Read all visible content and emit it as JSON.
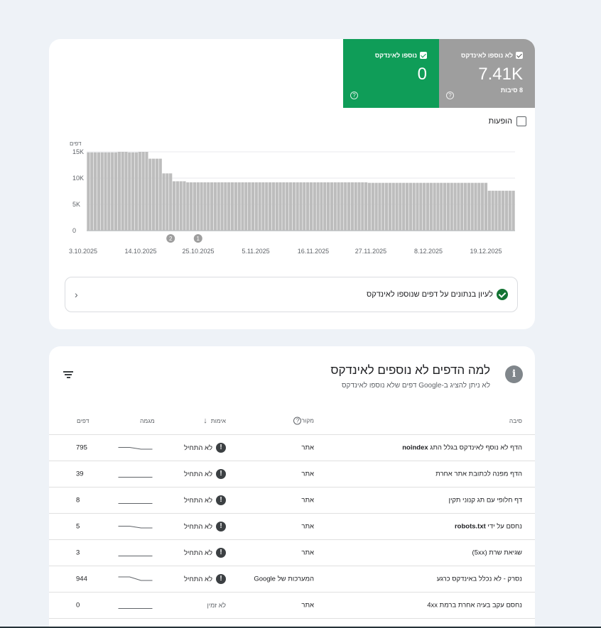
{
  "summary": {
    "not_indexed": {
      "label": "לא נוספו לאינדקס",
      "value": "7.41K",
      "sub": "8 סיבות",
      "color": "#9e9e9e"
    },
    "indexed": {
      "label": "נוספו לאינדקס",
      "value": "0",
      "color": "#0f9d58"
    },
    "help_glyph": "?"
  },
  "impressions_label": "הופעות",
  "chart_data": {
    "type": "bar",
    "ylabel": "דפים",
    "yticks": [
      "15K",
      "10K",
      "5K",
      "0"
    ],
    "ylim": [
      0,
      15000
    ],
    "xticks": [
      "3.10.2025",
      "14.10.2025",
      "25.10.2025",
      "5.11.2025",
      "16.11.2025",
      "27.11.2025",
      "8.12.2025",
      "19.12.2025"
    ],
    "values": [
      14900,
      14900,
      14900,
      14900,
      14900,
      14900,
      14900,
      14900,
      14900,
      15000,
      15000,
      15000,
      14900,
      14900,
      14900,
      15000,
      15000,
      15000,
      13700,
      13700,
      13700,
      13700,
      10900,
      10900,
      10900,
      9400,
      9400,
      9400,
      9400,
      9200,
      9200,
      9200,
      9200,
      9200,
      9200,
      9200,
      9200,
      9200,
      9200,
      9200,
      9200,
      9200,
      9200,
      9200,
      9200,
      9200,
      9200,
      9200,
      9200,
      9200,
      9200,
      9200,
      9200,
      9200,
      9200,
      9200,
      9200,
      9200,
      9200,
      9200,
      9200,
      9200,
      9200,
      9200,
      9200,
      9200,
      9200,
      9200,
      9200,
      9200,
      9200,
      9200,
      9200,
      9200,
      9200,
      9200,
      9200,
      9200,
      9200,
      9200,
      9200,
      9200,
      9100,
      9100,
      9100,
      9100,
      9100,
      9100,
      9100,
      9100,
      9100,
      9100,
      9100,
      9100,
      9100,
      9100,
      9100,
      9100,
      9100,
      9100,
      9100,
      9100,
      9100,
      9100,
      9100,
      9100,
      9100,
      9100,
      9100,
      9100,
      9100,
      9100,
      9100,
      9100,
      9100,
      9100,
      9100,
      7600,
      7600,
      7600,
      7600,
      7600,
      7600,
      7600,
      7600
    ],
    "annotations": [
      {
        "label": "2",
        "index": 24
      },
      {
        "label": "1",
        "index": 32
      }
    ],
    "bar_color": "#bdbdbd"
  },
  "details_link": "לעיון בנתונים על דפים שנוספו לאינדקס",
  "section": {
    "title": "למה הדפים לא נוספים לאינדקס",
    "subtitle": "לא ניתן להציג ב-Google דפים שלא נוספו לאינדקס",
    "info_glyph": "i"
  },
  "table": {
    "headers": {
      "reason": "סיבה",
      "source": "מקור",
      "validation": "אימות",
      "trend": "מגמה",
      "pages": "דפים"
    },
    "rows": [
      {
        "reason": "הדף לא נוסף לאינדקס בגלל התג ",
        "reason_bold": "noindex",
        "source": "אתר",
        "validation": "לא התחיל",
        "pages": "795",
        "trend": [
          3,
          3,
          2,
          2
        ]
      },
      {
        "reason": "הדף מפנה לכתובת אתר אחרת",
        "reason_bold": "",
        "source": "אתר",
        "validation": "לא התחיל",
        "pages": "39",
        "trend": [
          1,
          1,
          1,
          1
        ]
      },
      {
        "reason": "דף חלופי עם תג קנוני תקין",
        "reason_bold": "",
        "source": "אתר",
        "validation": "לא התחיל",
        "pages": "8",
        "trend": [
          1,
          1,
          1,
          1
        ]
      },
      {
        "reason": "נחסם על ידי ",
        "reason_bold": "robots.txt",
        "source": "אתר",
        "validation": "לא התחיל",
        "pages": "5",
        "trend": [
          3,
          3,
          2,
          2
        ]
      },
      {
        "reason": "שגיאת שרת (5xx)",
        "reason_bold": "",
        "source": "אתר",
        "validation": "לא התחיל",
        "pages": "3",
        "trend": [
          1,
          1,
          1,
          1
        ]
      },
      {
        "reason": "נסרק - לא נכלל באינדקס כרגע",
        "reason_bold": "",
        "source": "המערכות של Google",
        "validation": "לא התחיל",
        "pages": "944",
        "trend": [
          4,
          4,
          2,
          2
        ]
      },
      {
        "reason": "נחסם עקב בעיה אחרת ברמת 4xx",
        "reason_bold": "",
        "source": "אתר",
        "validation": "לא זמין",
        "pages": "0",
        "trend": [
          1,
          1,
          1,
          1
        ],
        "no_icon": true
      }
    ]
  }
}
